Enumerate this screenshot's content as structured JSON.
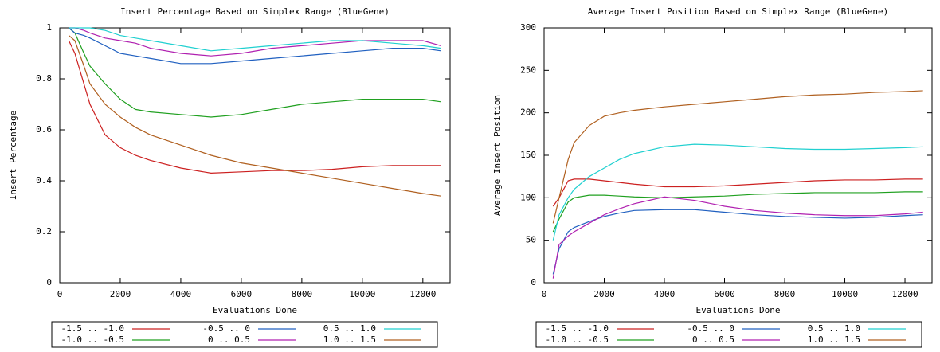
{
  "chart_data": [
    {
      "type": "line",
      "title": "Insert Percentage Based on Simplex Range (BlueGene)",
      "x_label": "Evaluations Done",
      "y_label": "Insert Percentage",
      "x": [
        300,
        500,
        800,
        1000,
        1500,
        2000,
        2500,
        3000,
        4000,
        5000,
        6000,
        7000,
        8000,
        9000,
        10000,
        11000,
        12000,
        12600
      ],
      "xlim": [
        0,
        12900
      ],
      "xticks": [
        0,
        2000,
        4000,
        6000,
        8000,
        10000,
        12000
      ],
      "ylim": [
        0,
        1
      ],
      "yticks": [
        0,
        0.2,
        0.4,
        0.6,
        0.8,
        1
      ],
      "legend": "bottom",
      "series": [
        {
          "name": "-1.5 .. -1.0",
          "color": "#cc2020",
          "values": [
            0.95,
            0.9,
            0.78,
            0.7,
            0.58,
            0.53,
            0.5,
            0.48,
            0.45,
            0.43,
            0.435,
            0.44,
            0.44,
            0.445,
            0.455,
            0.46,
            0.46,
            0.46
          ]
        },
        {
          "name": "-1.0 .. -0.5",
          "color": "#20a020",
          "values": [
            1,
            0.98,
            0.9,
            0.85,
            0.78,
            0.72,
            0.68,
            0.67,
            0.66,
            0.65,
            0.66,
            0.68,
            0.7,
            0.71,
            0.72,
            0.72,
            0.72,
            0.71
          ]
        },
        {
          "name": "-0.5 .. 0",
          "color": "#2060c0",
          "values": [
            1,
            0.98,
            0.97,
            0.96,
            0.93,
            0.9,
            0.89,
            0.88,
            0.86,
            0.86,
            0.87,
            0.88,
            0.89,
            0.9,
            0.91,
            0.92,
            0.92,
            0.91
          ]
        },
        {
          "name": "0 .. 0.5",
          "color": "#b020b0",
          "values": [
            1,
            1,
            0.99,
            0.98,
            0.96,
            0.95,
            0.94,
            0.92,
            0.9,
            0.89,
            0.9,
            0.92,
            0.93,
            0.94,
            0.95,
            0.95,
            0.95,
            0.93
          ]
        },
        {
          "name": "0.5 .. 1.0",
          "color": "#20d0d0",
          "values": [
            1,
            1,
            1,
            1,
            0.99,
            0.97,
            0.96,
            0.95,
            0.93,
            0.91,
            0.92,
            0.93,
            0.94,
            0.95,
            0.95,
            0.94,
            0.93,
            0.92
          ]
        },
        {
          "name": "1.0 .. 1.5",
          "color": "#b06020",
          "values": [
            0.97,
            0.95,
            0.85,
            0.78,
            0.7,
            0.65,
            0.61,
            0.58,
            0.54,
            0.5,
            0.47,
            0.45,
            0.43,
            0.41,
            0.39,
            0.37,
            0.35,
            0.34
          ]
        }
      ]
    },
    {
      "type": "line",
      "title": "Average Insert Position Based on Simplex Range (BlueGene)",
      "x_label": "Evaluations Done",
      "y_label": "Average Insert Position",
      "x": [
        300,
        500,
        800,
        1000,
        1500,
        2000,
        2500,
        3000,
        4000,
        5000,
        6000,
        7000,
        8000,
        9000,
        10000,
        11000,
        12000,
        12600
      ],
      "xlim": [
        0,
        12900
      ],
      "xticks": [
        0,
        2000,
        4000,
        6000,
        8000,
        10000,
        12000
      ],
      "ylim": [
        0,
        300
      ],
      "yticks": [
        0,
        50,
        100,
        150,
        200,
        250,
        300
      ],
      "legend": "bottom",
      "series": [
        {
          "name": "-1.5 .. -1.0",
          "color": "#cc2020",
          "values": [
            90,
            100,
            120,
            122,
            122,
            120,
            118,
            116,
            113,
            113,
            114,
            116,
            118,
            120,
            121,
            121,
            122,
            122
          ]
        },
        {
          "name": "-1.0 .. -0.5",
          "color": "#20a020",
          "values": [
            60,
            75,
            95,
            100,
            103,
            103,
            102,
            101,
            100,
            101,
            102,
            104,
            105,
            106,
            106,
            106,
            107,
            107
          ]
        },
        {
          "name": "-0.5 .. 0",
          "color": "#2060c0",
          "values": [
            10,
            40,
            60,
            65,
            72,
            78,
            82,
            85,
            86,
            86,
            83,
            80,
            78,
            77,
            76,
            77,
            79,
            80
          ]
        },
        {
          "name": "0 .. 0.5",
          "color": "#b020b0",
          "values": [
            5,
            45,
            55,
            60,
            70,
            80,
            87,
            93,
            101,
            97,
            90,
            85,
            82,
            80,
            79,
            79,
            81,
            83
          ]
        },
        {
          "name": "0.5 .. 1.0",
          "color": "#20d0d0",
          "values": [
            50,
            80,
            100,
            110,
            125,
            135,
            145,
            152,
            160,
            163,
            162,
            160,
            158,
            157,
            157,
            158,
            159,
            160
          ]
        },
        {
          "name": "1.0 .. 1.5",
          "color": "#b06020",
          "values": [
            70,
            100,
            145,
            165,
            185,
            196,
            200,
            203,
            207,
            210,
            213,
            216,
            219,
            221,
            222,
            224,
            225,
            226
          ]
        }
      ]
    }
  ]
}
